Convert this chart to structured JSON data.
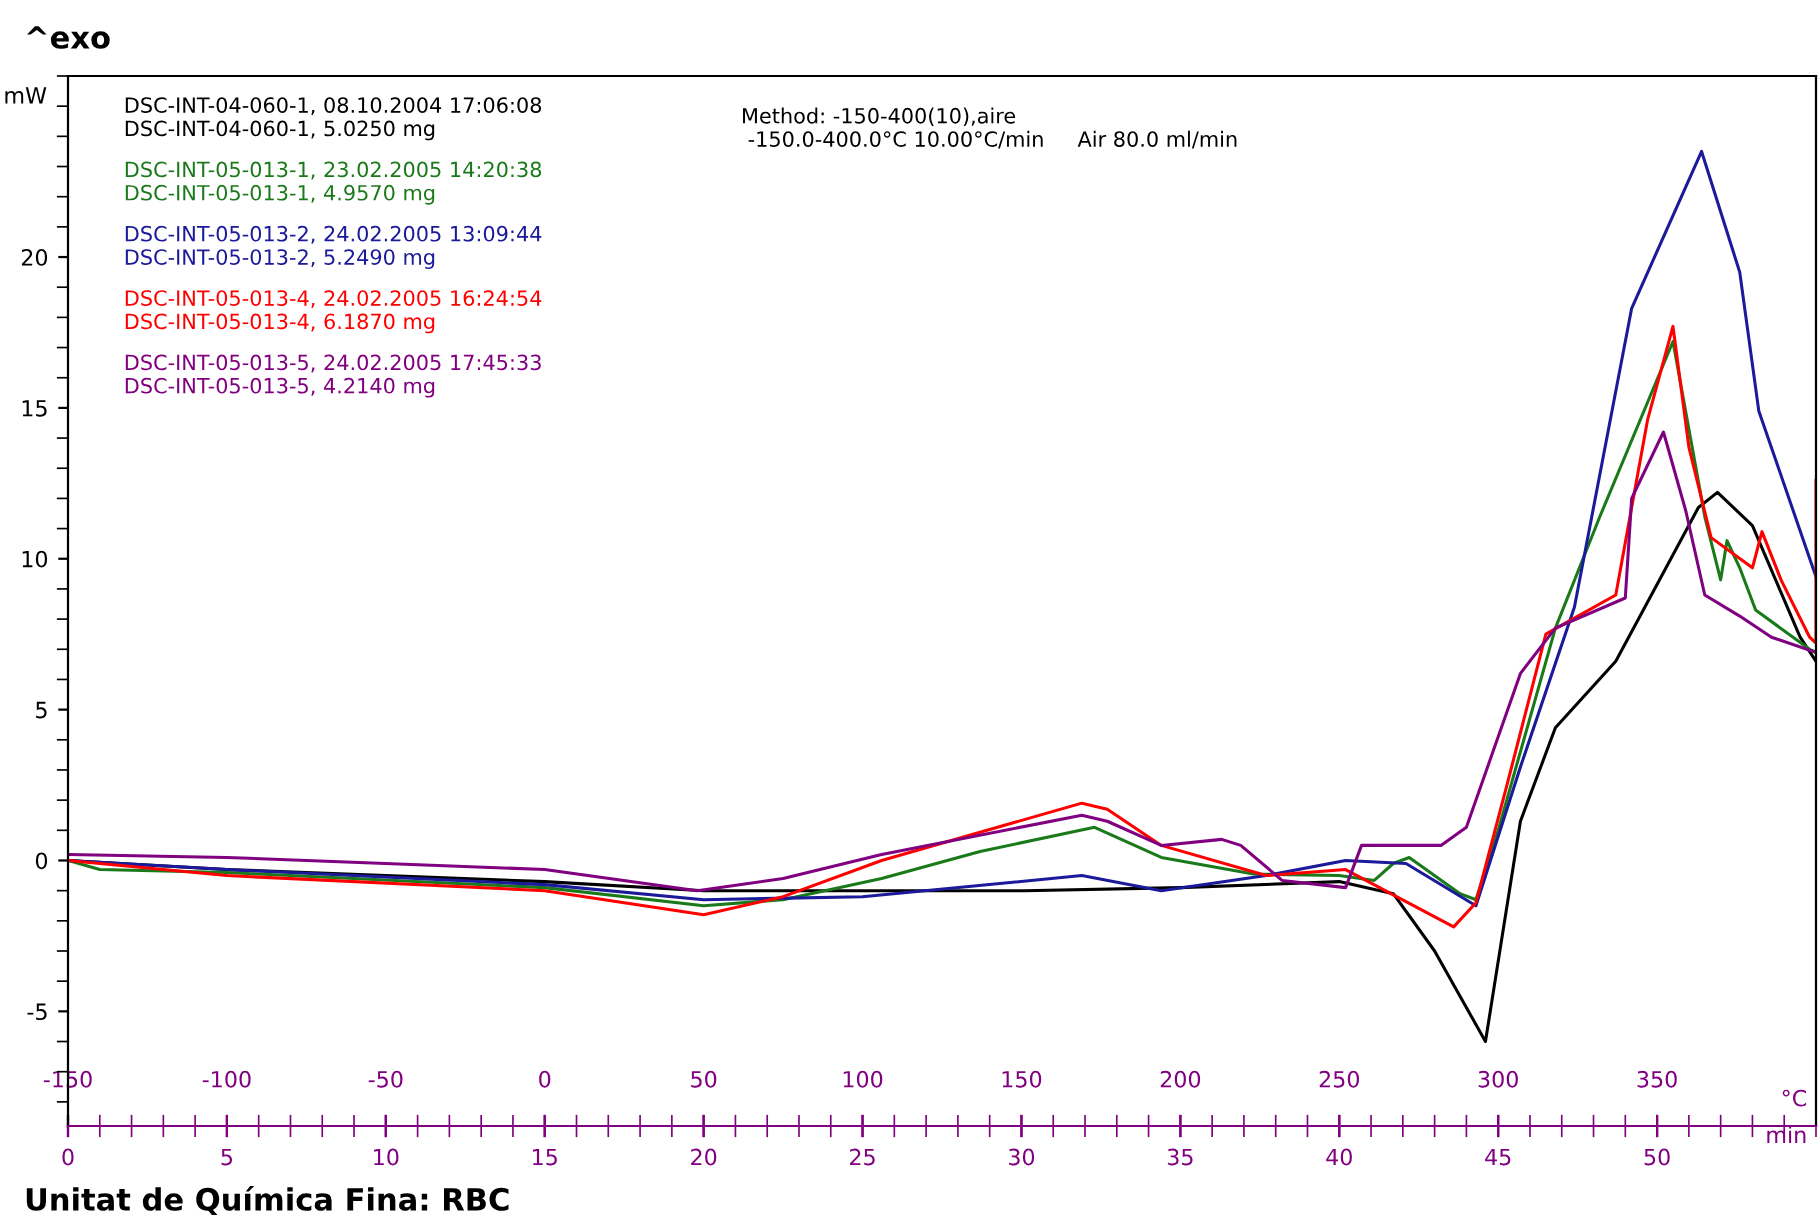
{
  "chart_data": {
    "type": "line",
    "title": "^exo",
    "ylabel": "mW",
    "xlabel": "°C",
    "x2label": "min",
    "annotations": [
      "Method: -150-400(10),aire\n -150.0-400.0°C 10.00°C/min     Air 80.0 ml/min",
      "Unitat de Química Fina: RBC"
    ],
    "xlim": [
      -150,
      400
    ],
    "xticks": [
      -150,
      -100,
      -50,
      0,
      50,
      100,
      150,
      200,
      250,
      300,
      350
    ],
    "x2lim": [
      0,
      55
    ],
    "x2ticks": [
      0,
      5,
      10,
      15,
      20,
      25,
      30,
      35,
      40,
      45,
      50
    ],
    "ylim": [
      -8.8,
      26
    ],
    "yticks": [
      -5,
      0,
      5,
      10,
      15,
      20
    ],
    "legend": "top left",
    "series": [
      {
        "name": "DSC-INT-04-060-1, 08.10.2004 17:06:08\nDSC-INT-04-060-1, 5.0250 mg",
        "color": "#000000",
        "x": [
          -150,
          -100,
          -50,
          0,
          50,
          100,
          151,
          200,
          250,
          267,
          280,
          296,
          307,
          318,
          337,
          363,
          369,
          380,
          395,
          400
        ],
        "values": [
          0,
          -0.3,
          -0.5,
          -0.7,
          -1.0,
          -1.0,
          -1.0,
          -0.9,
          -0.7,
          -1.1,
          -3.0,
          -6.0,
          1.3,
          4.4,
          6.6,
          11.7,
          12.2,
          11.1,
          7.4,
          6.6
        ]
      },
      {
        "name": "DSC-INT-05-013-1, 23.02.2005 14:20:38\nDSC-INT-05-013-1, 4.9570 mg",
        "color": "#1a7a1a",
        "x": [
          -150,
          -140,
          -100,
          0,
          50,
          75,
          106,
          137,
          173,
          194,
          223,
          250,
          261,
          267,
          272,
          288,
          293,
          300,
          318,
          332,
          355,
          365,
          370,
          372,
          376,
          381,
          398,
          400
        ],
        "values": [
          0,
          -0.3,
          -0.4,
          -0.9,
          -1.5,
          -1.3,
          -0.6,
          0.3,
          1.1,
          0.1,
          -0.45,
          -0.5,
          -0.66,
          -0.1,
          0.1,
          -1.1,
          -1.3,
          1.0,
          7.7,
          11.4,
          17.2,
          11.4,
          9.3,
          10.6,
          9.7,
          8.3,
          7.0,
          6.9
        ]
      },
      {
        "name": "DSC-INT-05-013-2, 24.02.2005 13:09:44\nDSC-INT-05-013-2, 5.2490 mg",
        "color": "#1a1a9a",
        "x": [
          -150,
          -100,
          0,
          50,
          100,
          169,
          194,
          227,
          252,
          271,
          293,
          307,
          324,
          342,
          364,
          376,
          382,
          400
        ],
        "values": [
          0,
          -0.3,
          -0.8,
          -1.3,
          -1.2,
          -0.5,
          -1.0,
          -0.5,
          0.0,
          -0.1,
          -1.5,
          3.1,
          8.4,
          18.3,
          23.5,
          19.5,
          14.9,
          9.4
        ]
      },
      {
        "name": "DSC-INT-05-013-4, 24.02.2005 16:24:54\nDSC-INT-05-013-4, 6.1870 mg",
        "color": "#ff0000",
        "x": [
          -150,
          -100,
          0,
          50,
          75,
          106,
          169,
          177,
          194,
          227,
          252,
          286,
          293,
          303,
          315,
          320,
          337,
          347,
          355,
          360,
          367,
          380,
          383,
          389,
          398,
          400,
          400
        ],
        "values": [
          0,
          -0.5,
          -1.0,
          -1.8,
          -1.2,
          0.0,
          1.9,
          1.7,
          0.5,
          -0.5,
          -0.3,
          -2.2,
          -1.4,
          2.6,
          7.5,
          7.8,
          8.8,
          14.6,
          17.7,
          13.7,
          10.7,
          9.7,
          10.9,
          9.3,
          7.4,
          7.2,
          12.6
        ]
      },
      {
        "name": "DSC-INT-05-013-5, 24.02.2005 17:45:33\nDSC-INT-05-013-5, 4.2140 mg",
        "color": "#800080",
        "x": [
          -150,
          -100,
          0,
          48,
          75,
          106,
          169,
          177,
          194,
          213,
          219,
          232,
          252,
          257,
          282,
          290,
          307,
          318,
          340,
          342,
          352,
          359,
          365,
          376,
          386,
          400
        ],
        "values": [
          0.2,
          0.1,
          -0.3,
          -1.0,
          -0.6,
          0.2,
          1.5,
          1.3,
          0.5,
          0.7,
          0.5,
          -0.66,
          -0.9,
          0.5,
          0.5,
          1.1,
          6.2,
          7.7,
          8.7,
          12.0,
          14.2,
          11.6,
          8.8,
          8.1,
          7.4,
          6.9
        ]
      }
    ]
  }
}
